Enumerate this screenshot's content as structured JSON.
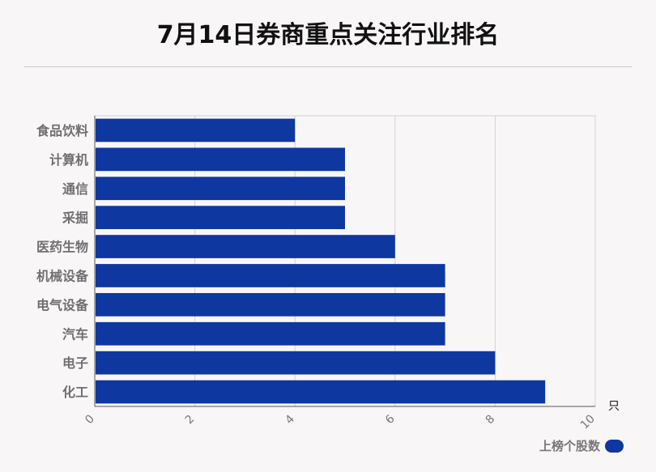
{
  "title": "7月14日券商重点关注行业排名",
  "unit": "只",
  "legend": {
    "label": "上榜个股数",
    "color": "#0f37a0"
  },
  "chart_data": {
    "type": "bar",
    "orientation": "horizontal",
    "categories": [
      "食品饮料",
      "计算机",
      "通信",
      "采掘",
      "医药生物",
      "机械设备",
      "电气设备",
      "汽车",
      "电子",
      "化工"
    ],
    "series": [
      {
        "name": "上榜个股数",
        "values": [
          4,
          5,
          5,
          5,
          6,
          7,
          7,
          7,
          8,
          9
        ]
      }
    ],
    "xlim": [
      0,
      10
    ],
    "xticks": [
      0,
      2,
      4,
      6,
      8,
      10
    ],
    "grid": true,
    "legend_position": "bottom-right"
  }
}
